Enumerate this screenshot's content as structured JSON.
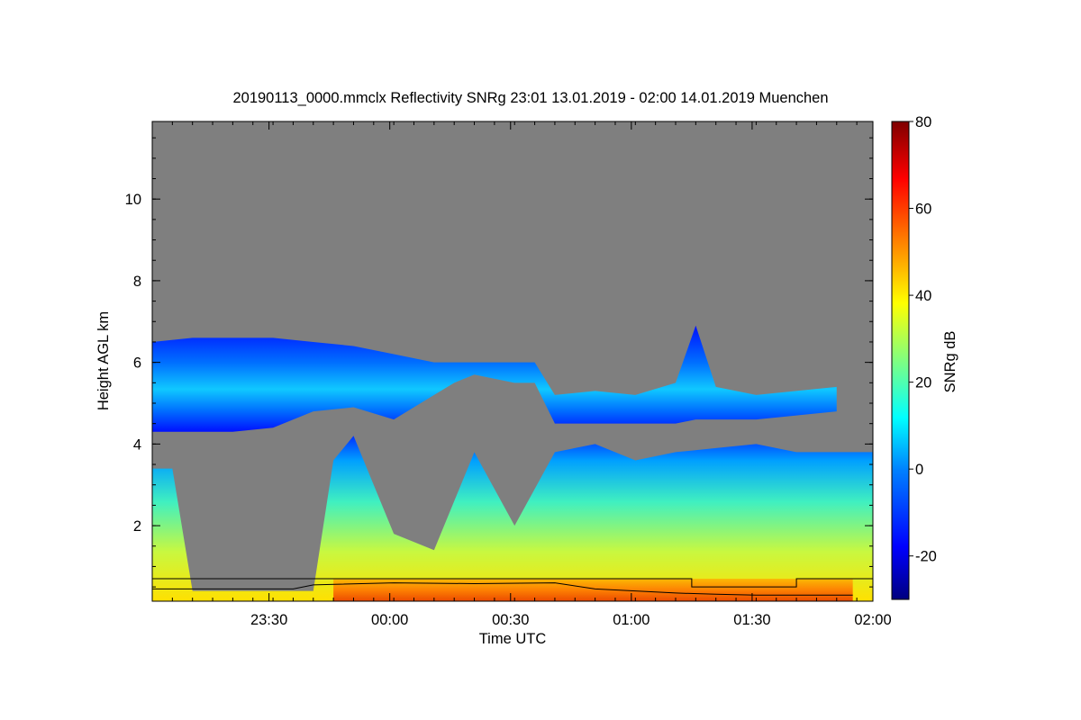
{
  "chart_data": {
    "type": "heatmap",
    "title": "20190113_0000.mmclx Reflectivity SNRg   23:01 13.01.2019 - 02:00 14.01.2019 Muenchen",
    "xlabel": "Time UTC",
    "ylabel": "Height AGL km",
    "colorbar_label": "SNRg dB",
    "x_range": [
      "23:01",
      "02:00"
    ],
    "x_ticks": [
      {
        "label": "23:30",
        "minutes": 29
      },
      {
        "label": "00:00",
        "minutes": 59
      },
      {
        "label": "00:30",
        "minutes": 89
      },
      {
        "label": "01:00",
        "minutes": 119
      },
      {
        "label": "01:30",
        "minutes": 149
      },
      {
        "label": "02:00",
        "minutes": 179
      }
    ],
    "x_span_minutes": 179,
    "ylim": [
      0.15,
      11.9
    ],
    "y_ticks": [
      2,
      4,
      6,
      8,
      10
    ],
    "y_minor_step": 0.5,
    "clim": [
      -30,
      80
    ],
    "c_ticks": [
      -20,
      0,
      20,
      40,
      60,
      80
    ],
    "missing_color": "#7f7f7f",
    "colormap": [
      "#00007f",
      "#0000ff",
      "#0080ff",
      "#00ffff",
      "#80ff80",
      "#ffff00",
      "#ff8000",
      "#ff0000",
      "#7f0000"
    ],
    "cloud_layers": [
      {
        "name": "upper cloud deck",
        "snr_db_range": [
          -25,
          12
        ],
        "x_minutes": [
          0,
          10,
          20,
          30,
          40,
          50,
          60,
          70,
          75,
          80,
          90,
          95,
          100,
          110,
          120,
          130,
          135,
          140,
          150,
          160,
          170
        ],
        "base_km": [
          4.3,
          4.3,
          4.3,
          4.4,
          4.8,
          4.9,
          4.6,
          5.2,
          5.5,
          5.7,
          5.5,
          5.5,
          4.5,
          4.5,
          4.5,
          4.5,
          4.6,
          4.6,
          4.6,
          4.7,
          4.8
        ],
        "top_km": [
          6.5,
          6.6,
          6.6,
          6.6,
          6.5,
          6.4,
          6.2,
          6.0,
          6.0,
          6.0,
          6.0,
          6.0,
          5.2,
          5.3,
          5.2,
          5.5,
          6.9,
          5.4,
          5.2,
          5.3,
          5.4
        ]
      },
      {
        "name": "lower precipitation column",
        "snr_db_range": [
          0,
          45
        ],
        "x_minutes": [
          0,
          5,
          10,
          20,
          30,
          40,
          45,
          50,
          60,
          70,
          80,
          90,
          100,
          110,
          120,
          130,
          140,
          150,
          160,
          170,
          179
        ],
        "top_km": [
          3.4,
          3.4,
          0.4,
          0.4,
          0.4,
          0.4,
          3.6,
          4.2,
          1.8,
          1.4,
          3.8,
          2.0,
          3.8,
          4.0,
          3.6,
          3.8,
          3.9,
          4.0,
          3.8,
          3.8,
          3.8
        ]
      }
    ],
    "near_surface": {
      "name": "high SNR near ground",
      "top_km": 0.7,
      "snr_db_range": [
        40,
        55
      ]
    },
    "lines": [
      {
        "name": "upper boundary",
        "x_minutes": [
          0,
          65,
          65,
          120,
          134,
          134,
          160,
          160,
          179
        ],
        "y_km": [
          0.7,
          0.7,
          0.7,
          0.7,
          0.7,
          0.5,
          0.5,
          0.7,
          0.7
        ]
      },
      {
        "name": "lower boundary",
        "x_minutes": [
          0,
          35,
          40,
          60,
          80,
          100,
          110,
          120,
          130,
          140,
          150,
          160,
          174
        ],
        "y_km": [
          0.45,
          0.45,
          0.55,
          0.6,
          0.58,
          0.6,
          0.45,
          0.4,
          0.35,
          0.32,
          0.3,
          0.3,
          0.3
        ]
      }
    ]
  }
}
